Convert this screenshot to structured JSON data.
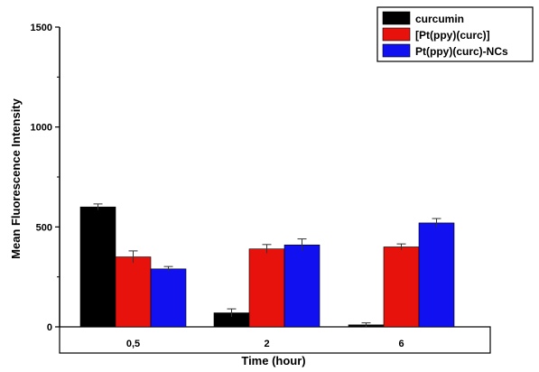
{
  "chart_data": {
    "type": "bar",
    "categories": [
      "0,5",
      "2",
      "6"
    ],
    "series": [
      {
        "name": "curcumin",
        "color": "#000000",
        "values": [
          600,
          70,
          10
        ],
        "errors": [
          15,
          20,
          10
        ]
      },
      {
        "name": "[Pt(ppy)(curc)]",
        "color": "#e8120c",
        "values": [
          350,
          390,
          400
        ],
        "errors": [
          30,
          22,
          15
        ]
      },
      {
        "name": "Pt(ppy)(curc)-NCs",
        "color": "#1010f0",
        "values": [
          290,
          410,
          520
        ],
        "errors": [
          12,
          30,
          22
        ]
      }
    ],
    "xlabel": "Time (hour)",
    "ylabel": "Mean Fluorescence Intensity",
    "ylim": [
      0,
      1500
    ],
    "yticks": [
      0,
      500,
      1000,
      1500
    ],
    "legend_position": "top-right",
    "grid": false
  }
}
